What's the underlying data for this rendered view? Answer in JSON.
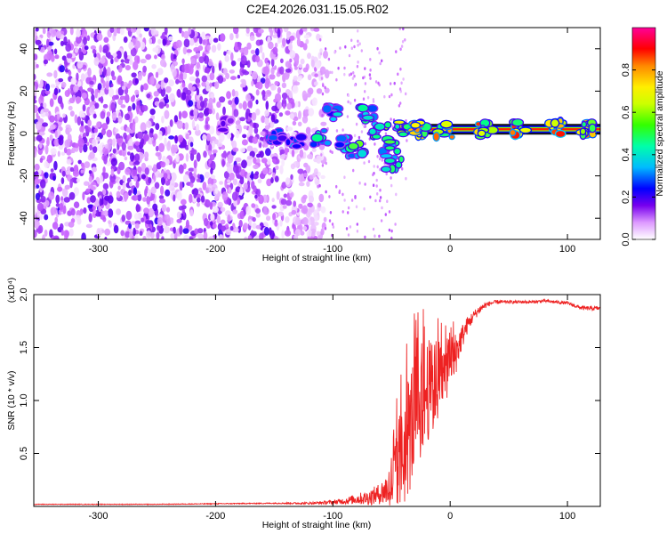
{
  "title": "C2E4.2026.031.15.05.R02",
  "chart_data": [
    {
      "type": "heatmap",
      "id": "spectrogram",
      "xlabel": "Height of straight line (km)",
      "ylabel": "Frequency (Hz)",
      "xlim": [
        -355,
        128
      ],
      "ylim": [
        -50,
        50
      ],
      "xticks": [
        -300,
        -200,
        -100,
        0,
        100
      ],
      "yticks": [
        -40,
        -20,
        0,
        20,
        40
      ],
      "noise_region_x": [
        -355,
        -112
      ],
      "carrier_frequency_hz": 2,
      "carrier_x_range": [
        -40,
        128
      ],
      "features": [
        {
          "x": -190,
          "f": 5,
          "amp": 0.25
        },
        {
          "x": -150,
          "f": -2,
          "amp": 0.35
        },
        {
          "x": -133,
          "f": -3,
          "amp": 0.4
        },
        {
          "x": -110,
          "f": -2,
          "amp": 0.5
        },
        {
          "x": -100,
          "f": 10,
          "amp": 0.45
        },
        {
          "x": -92,
          "f": -5,
          "amp": 0.55
        },
        {
          "x": -80,
          "f": -8,
          "amp": 0.6
        },
        {
          "x": -72,
          "f": 9,
          "amp": 0.55
        },
        {
          "x": -60,
          "f": 2,
          "amp": 0.65
        },
        {
          "x": -52,
          "f": -6,
          "amp": 0.6
        },
        {
          "x": -48,
          "f": -14,
          "amp": 0.55
        },
        {
          "x": -40,
          "f": 3,
          "amp": 0.7
        },
        {
          "x": -25,
          "f": 2,
          "amp": 0.85
        },
        {
          "x": -5,
          "f": 1,
          "amp": 0.85
        },
        {
          "x": 30,
          "f": 2,
          "amp": 0.9
        },
        {
          "x": 60,
          "f": 2,
          "amp": 0.9
        },
        {
          "x": 90,
          "f": 3,
          "amp": 0.95
        },
        {
          "x": 115,
          "f": 2,
          "amp": 0.9
        }
      ]
    },
    {
      "type": "line",
      "id": "snr",
      "xlabel": "Height of straight line (km)",
      "ylabel": "SNR (10 * v/v)",
      "y_scale_label": "(x10⁴)",
      "xlim": [
        -355,
        128
      ],
      "ylim": [
        0,
        2.0
      ],
      "xticks": [
        -300,
        -200,
        -100,
        0,
        100
      ],
      "yticks": [
        0.5,
        1.0,
        1.5,
        2.0
      ],
      "ytick_labels": [
        "0.5",
        "1.0",
        "1.5",
        "2.0"
      ],
      "series": [
        {
          "name": "SNR",
          "color": "#ee2222",
          "x": [
            -355,
            -300,
            -250,
            -200,
            -150,
            -120,
            -100,
            -90,
            -80,
            -70,
            -60,
            -55,
            -50,
            -45,
            -40,
            -35,
            -30,
            -25,
            -20,
            -15,
            -10,
            -5,
            0,
            5,
            10,
            15,
            20,
            25,
            30,
            35,
            40,
            50,
            60,
            70,
            80,
            90,
            100,
            110,
            115,
            120,
            128
          ],
          "values": [
            0.02,
            0.02,
            0.02,
            0.025,
            0.03,
            0.03,
            0.04,
            0.05,
            0.07,
            0.08,
            0.12,
            0.15,
            0.22,
            0.35,
            0.5,
            0.7,
            0.9,
            1.0,
            1.1,
            1.1,
            1.2,
            1.25,
            1.35,
            1.45,
            1.6,
            1.72,
            1.8,
            1.86,
            1.9,
            1.92,
            1.93,
            1.93,
            1.93,
            1.93,
            1.94,
            1.93,
            1.92,
            1.88,
            1.87,
            1.87,
            1.87
          ],
          "noise": [
            0.003,
            0.003,
            0.003,
            0.004,
            0.005,
            0.01,
            0.02,
            0.03,
            0.05,
            0.07,
            0.1,
            0.15,
            0.3,
            0.45,
            0.55,
            0.6,
            0.6,
            0.55,
            0.5,
            0.45,
            0.4,
            0.3,
            0.25,
            0.2,
            0.12,
            0.08,
            0.05,
            0.04,
            0.03,
            0.02,
            0.02,
            0.015,
            0.015,
            0.015,
            0.015,
            0.015,
            0.015,
            0.02,
            0.02,
            0.02,
            0.02
          ]
        }
      ]
    }
  ],
  "colorbar": {
    "label": "Normalized spectral amplitude",
    "range": [
      0,
      1
    ],
    "ticks": [
      0.0,
      0.2,
      0.4,
      0.6,
      0.8
    ],
    "tick_labels": [
      "0.0",
      "0.2",
      "0.4",
      "0.6",
      "0.8"
    ],
    "colors": [
      "#ffffff",
      "#cc66ff",
      "#6600ee",
      "#0000ff",
      "#00ccff",
      "#00ff88",
      "#88ff00",
      "#ffff00",
      "#ffaa00",
      "#ff0000",
      "#ff00aa"
    ]
  }
}
